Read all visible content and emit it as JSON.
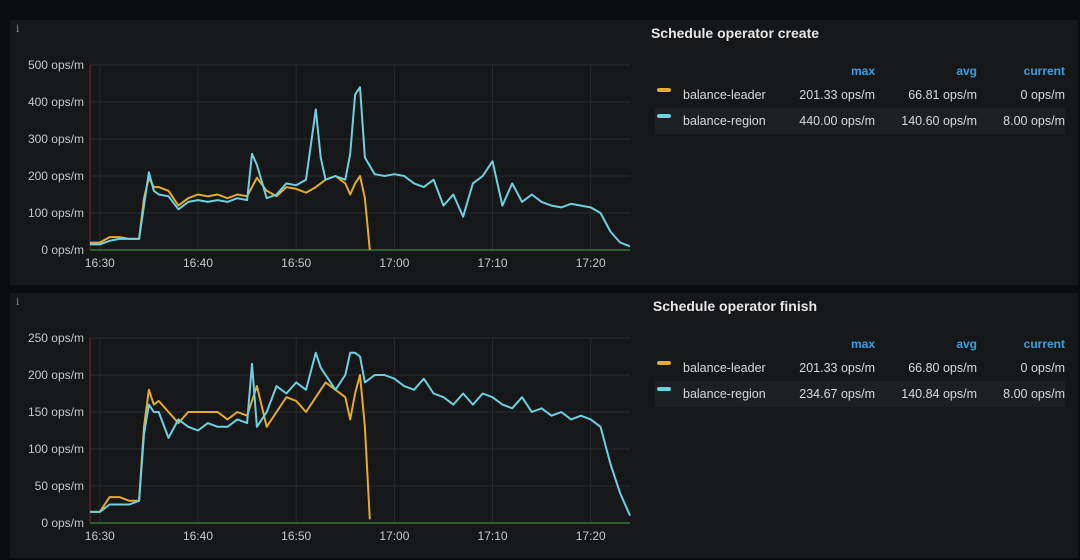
{
  "panels": [
    {
      "title": "Schedule operator create",
      "legend": {
        "headers": {
          "max": "max",
          "avg": "avg",
          "current": "current"
        },
        "rows": [
          {
            "name": "balance-leader",
            "max": "201.33 ops/m",
            "avg": "66.81 ops/m",
            "current": "0 ops/m",
            "color": "#e5ac2c"
          },
          {
            "name": "balance-region",
            "max": "440.00 ops/m",
            "avg": "140.60 ops/m",
            "current": "8.00 ops/m",
            "color": "#6ed0e0"
          }
        ]
      }
    },
    {
      "title": "Schedule operator finish",
      "legend": {
        "headers": {
          "max": "max",
          "avg": "avg",
          "current": "current"
        },
        "rows": [
          {
            "name": "balance-leader",
            "max": "201.33 ops/m",
            "avg": "66.80 ops/m",
            "current": "0 ops/m",
            "color": "#e5ac2c"
          },
          {
            "name": "balance-region",
            "max": "234.67 ops/m",
            "avg": "140.84 ops/m",
            "current": "8.00 ops/m",
            "color": "#6ed0e0"
          }
        ]
      }
    }
  ],
  "chart_data": [
    {
      "type": "line",
      "title": "Schedule operator create",
      "xlabel": "",
      "ylabel": "",
      "x_unit": "minutes",
      "xlim": [
        "16:29",
        "17:24"
      ],
      "ylim": [
        0,
        500
      ],
      "y_ticks": [
        "0 ops/m",
        "100 ops/m",
        "200 ops/m",
        "300 ops/m",
        "400 ops/m",
        "500 ops/m"
      ],
      "y_tick_values": [
        0,
        100,
        200,
        300,
        400,
        500
      ],
      "x_ticks": [
        "16:30",
        "16:40",
        "16:50",
        "17:00",
        "17:10",
        "17:20"
      ],
      "x_tick_values": [
        "16:30",
        "16:40",
        "16:50",
        "17:00",
        "17:10",
        "17:20"
      ],
      "grid": true,
      "legend_position": "right",
      "series": [
        {
          "name": "balance-leader",
          "color": "#e5ac2c",
          "x": [
            "16:29",
            "16:30",
            "16:31",
            "16:32",
            "16:33",
            "16:34",
            "16:34:30",
            "16:35",
            "16:35:30",
            "16:36",
            "16:37",
            "16:38",
            "16:39",
            "16:40",
            "16:41",
            "16:42",
            "16:43",
            "16:44",
            "16:45",
            "16:46",
            "16:47",
            "16:48",
            "16:49",
            "16:50",
            "16:51",
            "16:52",
            "16:53",
            "16:54",
            "16:55",
            "16:55:30",
            "16:56",
            "16:56:30",
            "16:57",
            "16:57:30"
          ],
          "y": [
            20,
            20,
            35,
            35,
            30,
            30,
            140,
            195,
            170,
            170,
            160,
            120,
            140,
            150,
            145,
            150,
            140,
            150,
            145,
            195,
            160,
            145,
            170,
            165,
            155,
            170,
            190,
            200,
            180,
            150,
            180,
            200,
            140,
            0
          ]
        },
        {
          "name": "balance-region",
          "color": "#6ed0e0",
          "x": [
            "16:29",
            "16:30",
            "16:31",
            "16:32",
            "16:33",
            "16:34",
            "16:34:30",
            "16:35",
            "16:35:30",
            "16:36",
            "16:37",
            "16:38",
            "16:39",
            "16:40",
            "16:41",
            "16:42",
            "16:43",
            "16:44",
            "16:45",
            "16:45:30",
            "16:46",
            "16:47",
            "16:48",
            "16:49",
            "16:50",
            "16:51",
            "16:52",
            "16:52:30",
            "16:53",
            "16:54",
            "16:55",
            "16:55:30",
            "16:56",
            "16:56:30",
            "16:57",
            "16:58",
            "16:59",
            "17:00",
            "17:01",
            "17:02",
            "17:03",
            "17:04",
            "17:05",
            "17:06",
            "17:07",
            "17:08",
            "17:09",
            "17:10",
            "17:11",
            "17:12",
            "17:13",
            "17:14",
            "17:15",
            "17:16",
            "17:17",
            "17:18",
            "17:19",
            "17:20",
            "17:21",
            "17:22",
            "17:23",
            "17:24"
          ],
          "y": [
            15,
            15,
            25,
            30,
            30,
            30,
            120,
            210,
            160,
            150,
            145,
            110,
            130,
            135,
            130,
            135,
            130,
            140,
            135,
            260,
            230,
            140,
            150,
            180,
            175,
            190,
            380,
            250,
            190,
            200,
            190,
            260,
            420,
            440,
            250,
            205,
            200,
            205,
            200,
            180,
            170,
            190,
            120,
            150,
            90,
            180,
            200,
            240,
            120,
            180,
            130,
            150,
            130,
            120,
            115,
            125,
            120,
            115,
            100,
            50,
            20,
            10
          ]
        }
      ]
    },
    {
      "type": "line",
      "title": "Schedule operator finish",
      "xlabel": "",
      "ylabel": "",
      "x_unit": "minutes",
      "xlim": [
        "16:29",
        "17:24"
      ],
      "ylim": [
        0,
        250
      ],
      "y_ticks": [
        "0 ops/m",
        "50 ops/m",
        "100 ops/m",
        "150 ops/m",
        "200 ops/m",
        "250 ops/m"
      ],
      "y_tick_values": [
        0,
        50,
        100,
        150,
        200,
        250
      ],
      "x_ticks": [
        "16:30",
        "16:40",
        "16:50",
        "17:00",
        "17:10",
        "17:20"
      ],
      "x_tick_values": [
        "16:30",
        "16:40",
        "16:50",
        "17:00",
        "17:10",
        "17:20"
      ],
      "grid": true,
      "legend_position": "right",
      "series": [
        {
          "name": "balance-leader",
          "color": "#e5ac2c",
          "x": [
            "16:29",
            "16:30",
            "16:31",
            "16:32",
            "16:33",
            "16:34",
            "16:34:30",
            "16:35",
            "16:35:30",
            "16:36",
            "16:37",
            "16:38",
            "16:39",
            "16:40",
            "16:41",
            "16:42",
            "16:43",
            "16:44",
            "16:45",
            "16:46",
            "16:47",
            "16:48",
            "16:49",
            "16:50",
            "16:51",
            "16:52",
            "16:53",
            "16:54",
            "16:55",
            "16:55:30",
            "16:56",
            "16:56:30",
            "16:57",
            "16:57:30"
          ],
          "y": [
            15,
            15,
            35,
            35,
            30,
            30,
            130,
            180,
            160,
            165,
            150,
            135,
            150,
            150,
            150,
            150,
            140,
            150,
            145,
            185,
            130,
            150,
            170,
            165,
            150,
            170,
            190,
            180,
            170,
            140,
            175,
            200,
            130,
            5
          ]
        },
        {
          "name": "balance-region",
          "color": "#6ed0e0",
          "x": [
            "16:29",
            "16:30",
            "16:31",
            "16:32",
            "16:33",
            "16:34",
            "16:34:30",
            "16:35",
            "16:35:30",
            "16:36",
            "16:37",
            "16:38",
            "16:39",
            "16:40",
            "16:41",
            "16:42",
            "16:43",
            "16:44",
            "16:45",
            "16:45:30",
            "16:46",
            "16:47",
            "16:48",
            "16:49",
            "16:50",
            "16:51",
            "16:52",
            "16:52:30",
            "16:53",
            "16:54",
            "16:55",
            "16:55:30",
            "16:56",
            "16:56:30",
            "16:57",
            "16:58",
            "16:59",
            "17:00",
            "17:01",
            "17:02",
            "17:03",
            "17:04",
            "17:05",
            "17:06",
            "17:07",
            "17:08",
            "17:09",
            "17:10",
            "17:11",
            "17:12",
            "17:13",
            "17:14",
            "17:15",
            "17:16",
            "17:17",
            "17:18",
            "17:19",
            "17:20",
            "17:21",
            "17:22",
            "17:23",
            "17:24"
          ],
          "y": [
            15,
            15,
            25,
            25,
            25,
            30,
            120,
            160,
            150,
            150,
            115,
            140,
            130,
            125,
            135,
            130,
            130,
            140,
            135,
            215,
            130,
            150,
            185,
            175,
            190,
            180,
            230,
            210,
            200,
            180,
            200,
            230,
            230,
            225,
            190,
            200,
            200,
            195,
            185,
            180,
            195,
            175,
            170,
            160,
            175,
            160,
            175,
            170,
            160,
            155,
            170,
            150,
            155,
            145,
            150,
            140,
            145,
            140,
            130,
            80,
            40,
            10
          ]
        }
      ]
    }
  ]
}
